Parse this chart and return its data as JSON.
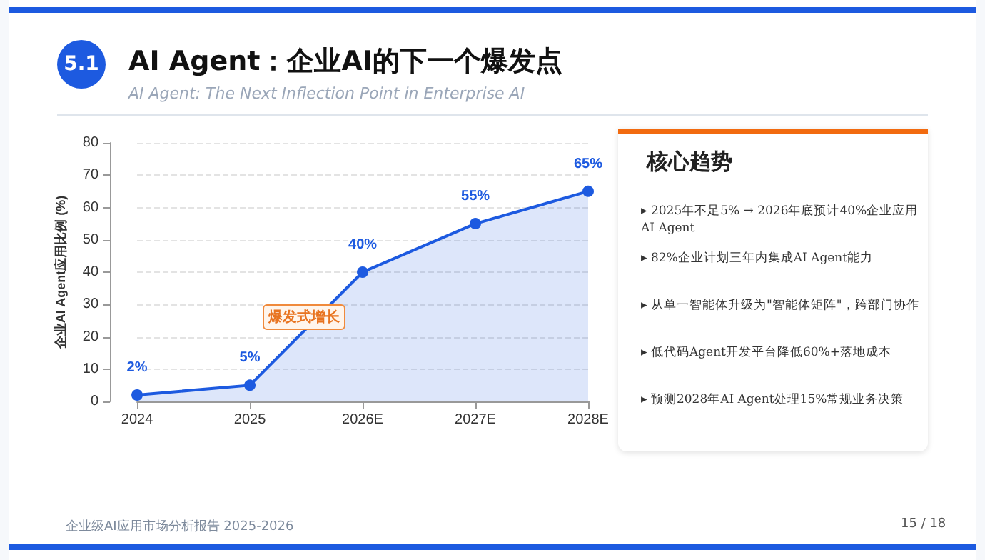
{
  "chart_data": [
    {
      "type": "area",
      "title": "AI Agent：企业AI的下一个爆发点",
      "subtitle": "AI Agent: The Next Inflection Point in Enterprise AI",
      "ylabel": "企业AI Agent应用比例 (%)",
      "categories": [
        "2024",
        "2025",
        "2026E",
        "2027E",
        "2028E"
      ],
      "series": [
        {
          "color": "#1d5ae0",
          "values": [
            2,
            5,
            40,
            55,
            65
          ],
          "value_labels": [
            "2%",
            "5%",
            "40%",
            "55%",
            "65%"
          ]
        }
      ],
      "ylim": [
        0,
        80
      ],
      "yticks": [
        0,
        10,
        20,
        30,
        40,
        50,
        60,
        70,
        80
      ],
      "grid": "y",
      "marker": "circle",
      "line_style": "solid",
      "annotations": [
        "爆发式增长",
        "5.1",
        "企业级AI应用市场分析报告 2025-2026",
        "15 / 18"
      ]
    },
    {
      "type": "other",
      "title": "核心趋势",
      "annotations": [
        "▸ 2025年不足5% → 2026年底预计40%企业应用AI Agent",
        "▸ 82%企业计划三年内集成AI Agent能力",
        "▸ 从单一智能体升级为\"智能体矩阵\"，跨部门协作",
        "▸ 低代码Agent开发平台降低60%+落地成本",
        "▸ 预测2028年AI Agent处理15%常规业务决策"
      ]
    }
  ]
}
